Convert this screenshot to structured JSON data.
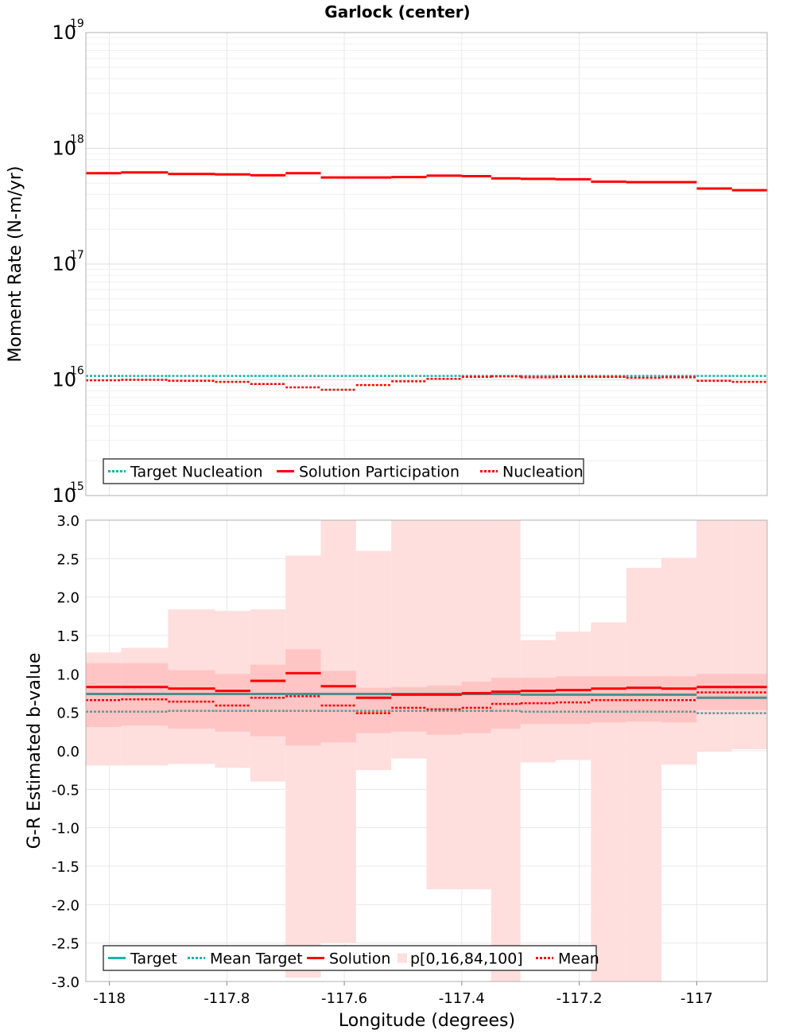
{
  "figure": {
    "title": "Garlock (center)",
    "xlabel": "Longitude (degrees)",
    "colors": {
      "target": "#1ab2a8",
      "mean_target": "#1ab2a8",
      "solution": "#ff0000",
      "mean": "#ff0000",
      "band_outer": "#ffdede",
      "band_inner": "#ffc4c4",
      "grid": "#e8e8e8",
      "target_overlap": "#4b8f8c"
    }
  },
  "chart_data": [
    {
      "type": "line",
      "title": "Garlock (center)",
      "xlabel": "",
      "ylabel": "Moment Rate (N-m/yr)",
      "yscale": "log",
      "xlim": [
        -118.04,
        -116.88
      ],
      "ylim": [
        1000000000000000.0,
        1e+19
      ],
      "ytick_labels": [
        {
          "base": "10",
          "exp": "15",
          "value": 1000000000000000.0
        },
        {
          "base": "10",
          "exp": "16",
          "value": 1e+16
        },
        {
          "base": "10",
          "exp": "17",
          "value": 1e+17
        },
        {
          "base": "10",
          "exp": "18",
          "value": 1e+18
        },
        {
          "base": "10",
          "exp": "19",
          "value": 1e+19
        }
      ],
      "grid": true,
      "legend_position": "bottom-left",
      "x_edges": [
        -118.04,
        -117.98,
        -117.9,
        -117.82,
        -117.76,
        -117.7,
        -117.64,
        -117.58,
        -117.52,
        -117.46,
        -117.4,
        -117.35,
        -117.3,
        -117.24,
        -117.18,
        -117.12,
        -117.06,
        -117.0,
        -116.94,
        -116.88
      ],
      "series": [
        {
          "name": "Target Nucleation",
          "style": "dotted",
          "color": "#1ab2a8",
          "values": [
            1.08e+16,
            1.08e+16,
            1.08e+16,
            1.08e+16,
            1.08e+16,
            1.08e+16,
            1.08e+16,
            1.08e+16,
            1.08e+16,
            1.08e+16,
            1.08e+16,
            1.08e+16,
            1.08e+16,
            1.08e+16,
            1.08e+16,
            1.08e+16,
            1.08e+16,
            1.08e+16,
            1.08e+16
          ]
        },
        {
          "name": "Solution Participation",
          "style": "solid",
          "color": "#ff0000",
          "values": [
            6.1e+17,
            6.2e+17,
            6e+17,
            5.95e+17,
            5.85e+17,
            6.1e+17,
            5.6e+17,
            5.6e+17,
            5.65e+17,
            5.8e+17,
            5.75e+17,
            5.5e+17,
            5.45e+17,
            5.4e+17,
            5.15e+17,
            5.1e+17,
            5.1e+17,
            4.5e+17,
            4.35e+17
          ]
        },
        {
          "name": "Nucleation",
          "style": "dotted",
          "color": "#ff0000",
          "values": [
            9900000000000000.0,
            1e+16,
            9800000000000000.0,
            9600000000000000.0,
            9200000000000000.0,
            8600000000000000.0,
            8200000000000000.0,
            9000000000000000.0,
            9700000000000000.0,
            1.02e+16,
            1.06e+16,
            1.07e+16,
            1.05e+16,
            1.06e+16,
            1.06e+16,
            1.04e+16,
            1.05e+16,
            9800000000000000.0,
            9600000000000000.0
          ]
        }
      ]
    },
    {
      "type": "line",
      "title": "",
      "xlabel": "Longitude (degrees)",
      "ylabel": "G-R Estimated b-value",
      "xlim": [
        -118.04,
        -116.88
      ],
      "ylim": [
        -3.0,
        3.0
      ],
      "xticks": [
        -118,
        -117.8,
        -117.6,
        -117.4,
        -117.2,
        -117
      ],
      "xtick_labels": [
        "-118",
        "-117.8",
        "-117.6",
        "-117.4",
        "-117.2",
        "-117"
      ],
      "yticks": [
        -3.0,
        -2.5,
        -2.0,
        -1.5,
        -1.0,
        -0.5,
        0.0,
        0.5,
        1.0,
        1.5,
        2.0,
        2.5,
        3.0
      ],
      "ytick_labels": [
        "-3.0",
        "-2.5",
        "-2.0",
        "-1.5",
        "-1.0",
        "-0.5",
        "0.0",
        "0.5",
        "1.0",
        "1.5",
        "2.0",
        "2.5",
        "3.0"
      ],
      "grid": true,
      "legend_position": "bottom-left",
      "x_edges": [
        -118.04,
        -117.98,
        -117.9,
        -117.82,
        -117.76,
        -117.7,
        -117.64,
        -117.58,
        -117.52,
        -117.46,
        -117.4,
        -117.35,
        -117.3,
        -117.24,
        -117.18,
        -117.12,
        -117.06,
        -117.0,
        -116.94,
        -116.88
      ],
      "series": [
        {
          "name": "Target",
          "style": "solid",
          "color": "#1ab2a8",
          "values": [
            0.74,
            0.74,
            0.74,
            0.74,
            0.74,
            0.74,
            0.74,
            0.74,
            0.74,
            0.74,
            0.74,
            0.74,
            0.73,
            0.73,
            0.73,
            0.73,
            0.73,
            0.69,
            0.69
          ]
        },
        {
          "name": "Mean Target",
          "style": "dotted",
          "color": "#1ab2a8",
          "values": [
            0.51,
            0.51,
            0.52,
            0.52,
            0.52,
            0.52,
            0.52,
            0.52,
            0.52,
            0.52,
            0.52,
            0.52,
            0.51,
            0.51,
            0.51,
            0.51,
            0.51,
            0.49,
            0.49
          ]
        },
        {
          "name": "Solution",
          "style": "solid",
          "color": "#ff0000",
          "values": [
            0.83,
            0.83,
            0.81,
            0.78,
            0.91,
            1.01,
            0.84,
            0.69,
            0.73,
            0.73,
            0.75,
            0.77,
            0.78,
            0.79,
            0.81,
            0.82,
            0.81,
            0.83,
            0.83
          ]
        },
        {
          "name": "p[0,16,84,100]",
          "style": "band",
          "color": "#ffdede",
          "min": [
            -0.19,
            -0.19,
            -0.17,
            -0.22,
            -0.4,
            -2.95,
            -2.5,
            -0.25,
            -0.1,
            -1.8,
            -1.8,
            -3.0,
            -0.15,
            -0.12,
            -3.0,
            -3.0,
            -0.18,
            -0.01,
            0.02
          ],
          "p16": [
            0.31,
            0.33,
            0.29,
            0.25,
            0.19,
            0.07,
            0.11,
            0.23,
            0.25,
            0.21,
            0.23,
            0.29,
            0.35,
            0.35,
            0.37,
            0.38,
            0.37,
            0.53,
            0.53
          ],
          "p84": [
            1.14,
            1.14,
            1.05,
            1.0,
            1.12,
            1.32,
            1.04,
            0.82,
            0.83,
            0.85,
            0.9,
            0.95,
            0.95,
            0.97,
            0.97,
            0.97,
            0.97,
            1.0,
            1.0
          ],
          "max": [
            1.28,
            1.34,
            1.84,
            1.82,
            1.84,
            2.54,
            3.0,
            2.6,
            3.0,
            3.0,
            3.0,
            3.0,
            1.44,
            1.55,
            1.67,
            2.38,
            2.51,
            3.0,
            3.0
          ]
        },
        {
          "name": "Mean",
          "style": "dotted",
          "color": "#ff0000",
          "values": [
            0.66,
            0.67,
            0.64,
            0.59,
            0.69,
            0.71,
            0.59,
            0.49,
            0.56,
            0.54,
            0.56,
            0.61,
            0.62,
            0.63,
            0.66,
            0.66,
            0.66,
            0.76,
            0.76
          ]
        }
      ]
    }
  ]
}
